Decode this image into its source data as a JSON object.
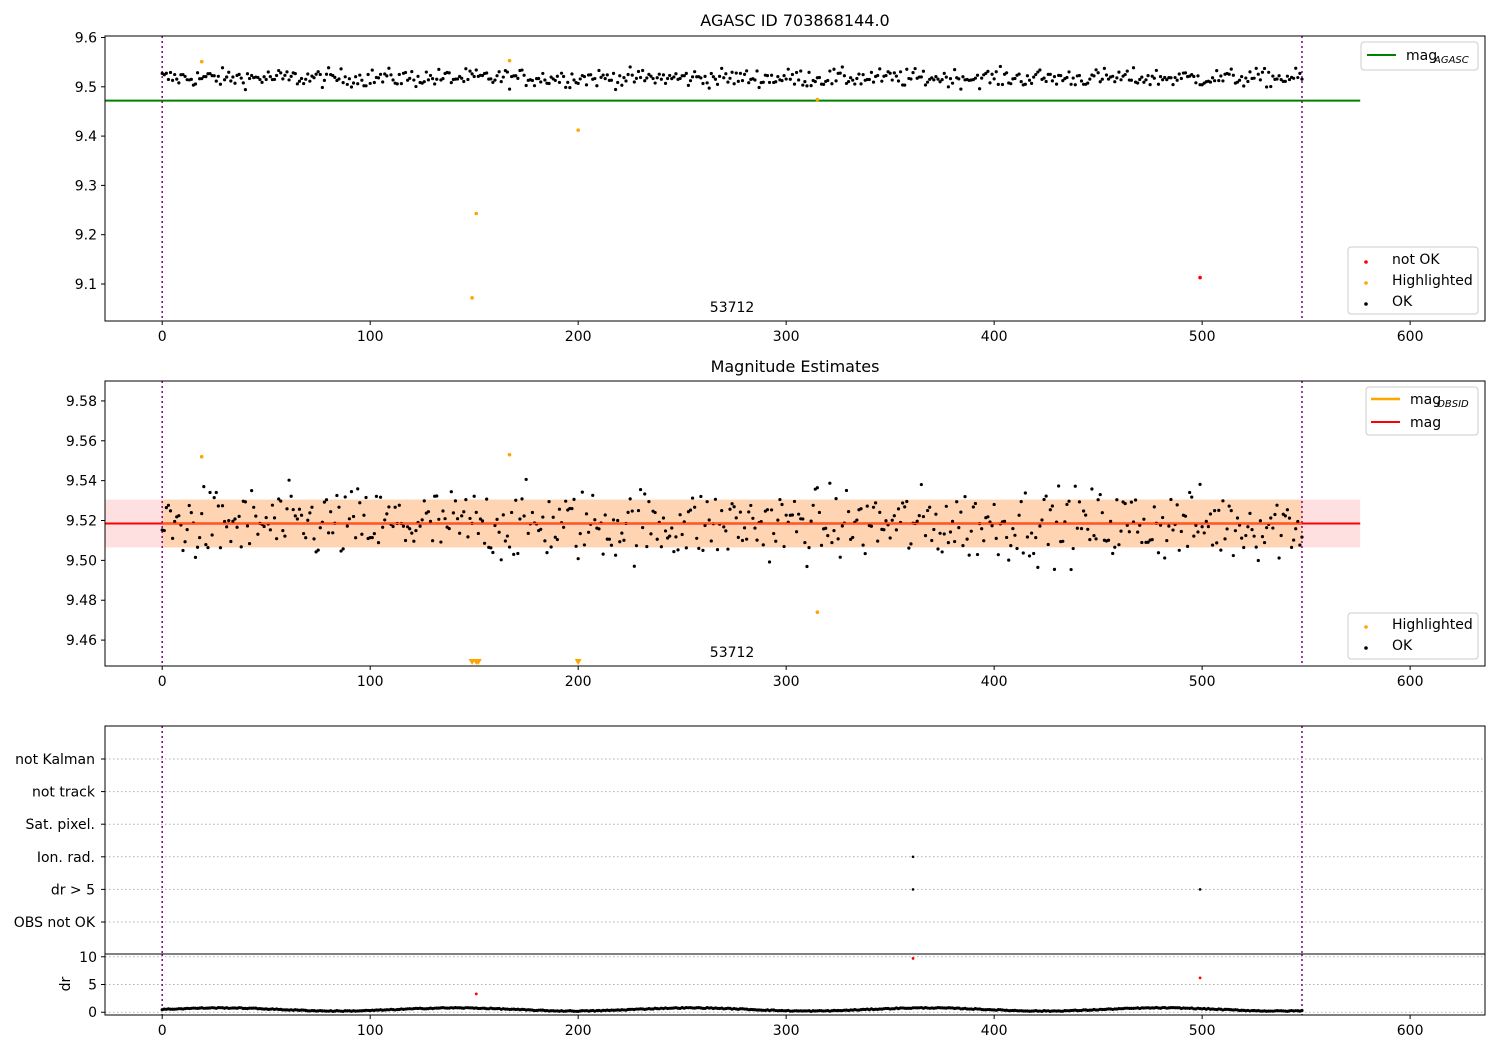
{
  "chart_data": [
    {
      "type": "scatter",
      "title": "AGASC ID 703868144.0",
      "xlabel": "",
      "ylabel": "",
      "xlim": [
        -27.5,
        636
      ],
      "ylim": [
        9.025,
        9.603
      ],
      "xticks": [
        "0",
        "100",
        "200",
        "300",
        "400",
        "500",
        "600"
      ],
      "yticks": [
        "9.1",
        "9.2",
        "9.3",
        "9.4",
        "9.5",
        "9.6"
      ],
      "annotation": "53712",
      "vlines_x": [
        0,
        548
      ],
      "reference_line": {
        "name": "mag_AGASC",
        "y": 9.472,
        "x_range": [
          -27.5,
          576
        ],
        "color": "#008000"
      },
      "legend_top": {
        "position": "top-right",
        "entries": [
          "mag",
          "AGASC"
        ]
      },
      "legend_bottom": {
        "position": "bottom-right",
        "entries": [
          "not OK",
          "Highlighted",
          "OK"
        ]
      },
      "series": [
        {
          "name": "not OK",
          "color": "#ff0000",
          "points": [
            [
              499,
              9.113
            ]
          ]
        },
        {
          "name": "Highlighted",
          "color": "#ffa500",
          "points": [
            [
              19,
              9.551
            ],
            [
              149,
              9.072
            ],
            [
              151,
              9.243
            ],
            [
              167,
              9.553
            ],
            [
              200,
              9.412
            ],
            [
              315,
              9.474
            ]
          ]
        },
        {
          "name": "OK",
          "color": "#000000",
          "n": 548,
          "y_mean": 9.518,
          "y_spread": 0.012,
          "y_range": [
            9.488,
            9.547
          ],
          "x_range": [
            0,
            548
          ]
        }
      ]
    },
    {
      "type": "scatter",
      "title": "Magnitude Estimates",
      "xlabel": "",
      "ylabel": "",
      "xlim": [
        -27.5,
        636
      ],
      "ylim": [
        9.447,
        9.59
      ],
      "xticks": [
        "0",
        "100",
        "200",
        "300",
        "400",
        "500",
        "600"
      ],
      "yticks": [
        "9.46",
        "9.48",
        "9.50",
        "9.52",
        "9.54",
        "9.56",
        "9.58"
      ],
      "annotation": "53712",
      "vlines_x": [
        0,
        548
      ],
      "mag_line": {
        "name": "mag",
        "y": 9.5185,
        "color": "#ff0000"
      },
      "mag_band": {
        "y_range": [
          9.5065,
          9.5305
        ],
        "x_range": [
          -27.5,
          576
        ]
      },
      "mag_obsid_band": {
        "y_range": [
          9.5065,
          9.5305
        ],
        "x_range": [
          0,
          548
        ]
      },
      "legend_top": {
        "position": "top-right",
        "entries": [
          "mag",
          "OBSID",
          "mag"
        ]
      },
      "legend_bottom": {
        "position": "bottom-right",
        "entries": [
          "Highlighted",
          "OK"
        ]
      },
      "series": [
        {
          "name": "Highlighted",
          "color": "#ffa500",
          "points": [
            [
              19,
              9.552
            ],
            [
              167,
              9.553
            ],
            [
              315,
              9.474
            ]
          ]
        },
        {
          "name": "Highlighted (below axis)",
          "color": "#ffa500",
          "markers": "v",
          "x": [
            149,
            151,
            152,
            200
          ]
        },
        {
          "name": "OK",
          "color": "#000000",
          "n": 548,
          "y_mean": 9.518,
          "y_spread": 0.012,
          "y_range": [
            9.488,
            9.547
          ],
          "x_range": [
            0,
            548
          ]
        }
      ]
    },
    {
      "type": "scatter",
      "title": "",
      "xlabel": "",
      "ylabel": "",
      "xlim": [
        -27.5,
        636
      ],
      "yticks": [
        "not Kalman",
        "not track",
        "Sat. pixel.",
        "Ion. rad.",
        "dr > 5",
        "OBS not OK"
      ],
      "vlines_x": [
        0,
        548
      ],
      "flags": [
        {
          "name": "Ion. rad.",
          "x": [
            361
          ]
        },
        {
          "name": "dr > 5",
          "x": [
            361,
            499
          ]
        }
      ]
    },
    {
      "type": "scatter",
      "title": "",
      "xlabel": "",
      "ylabel": "dr",
      "xlim": [
        -27.5,
        636
      ],
      "ylim": [
        -0.5,
        10.5
      ],
      "xticks": [
        "0",
        "100",
        "200",
        "300",
        "400",
        "500",
        "600"
      ],
      "yticks": [
        "0",
        "5",
        "10"
      ],
      "vlines_x": [
        0,
        548
      ],
      "series": [
        {
          "name": "not OK",
          "color": "#ff0000",
          "points": [
            [
              151,
              3.3
            ],
            [
              361,
              9.7
            ],
            [
              499,
              6.2
            ]
          ]
        },
        {
          "name": "OK",
          "color": "#000000",
          "n": 548,
          "y_range": [
            0.1,
            0.9
          ],
          "x_range": [
            0,
            548
          ]
        }
      ]
    }
  ]
}
